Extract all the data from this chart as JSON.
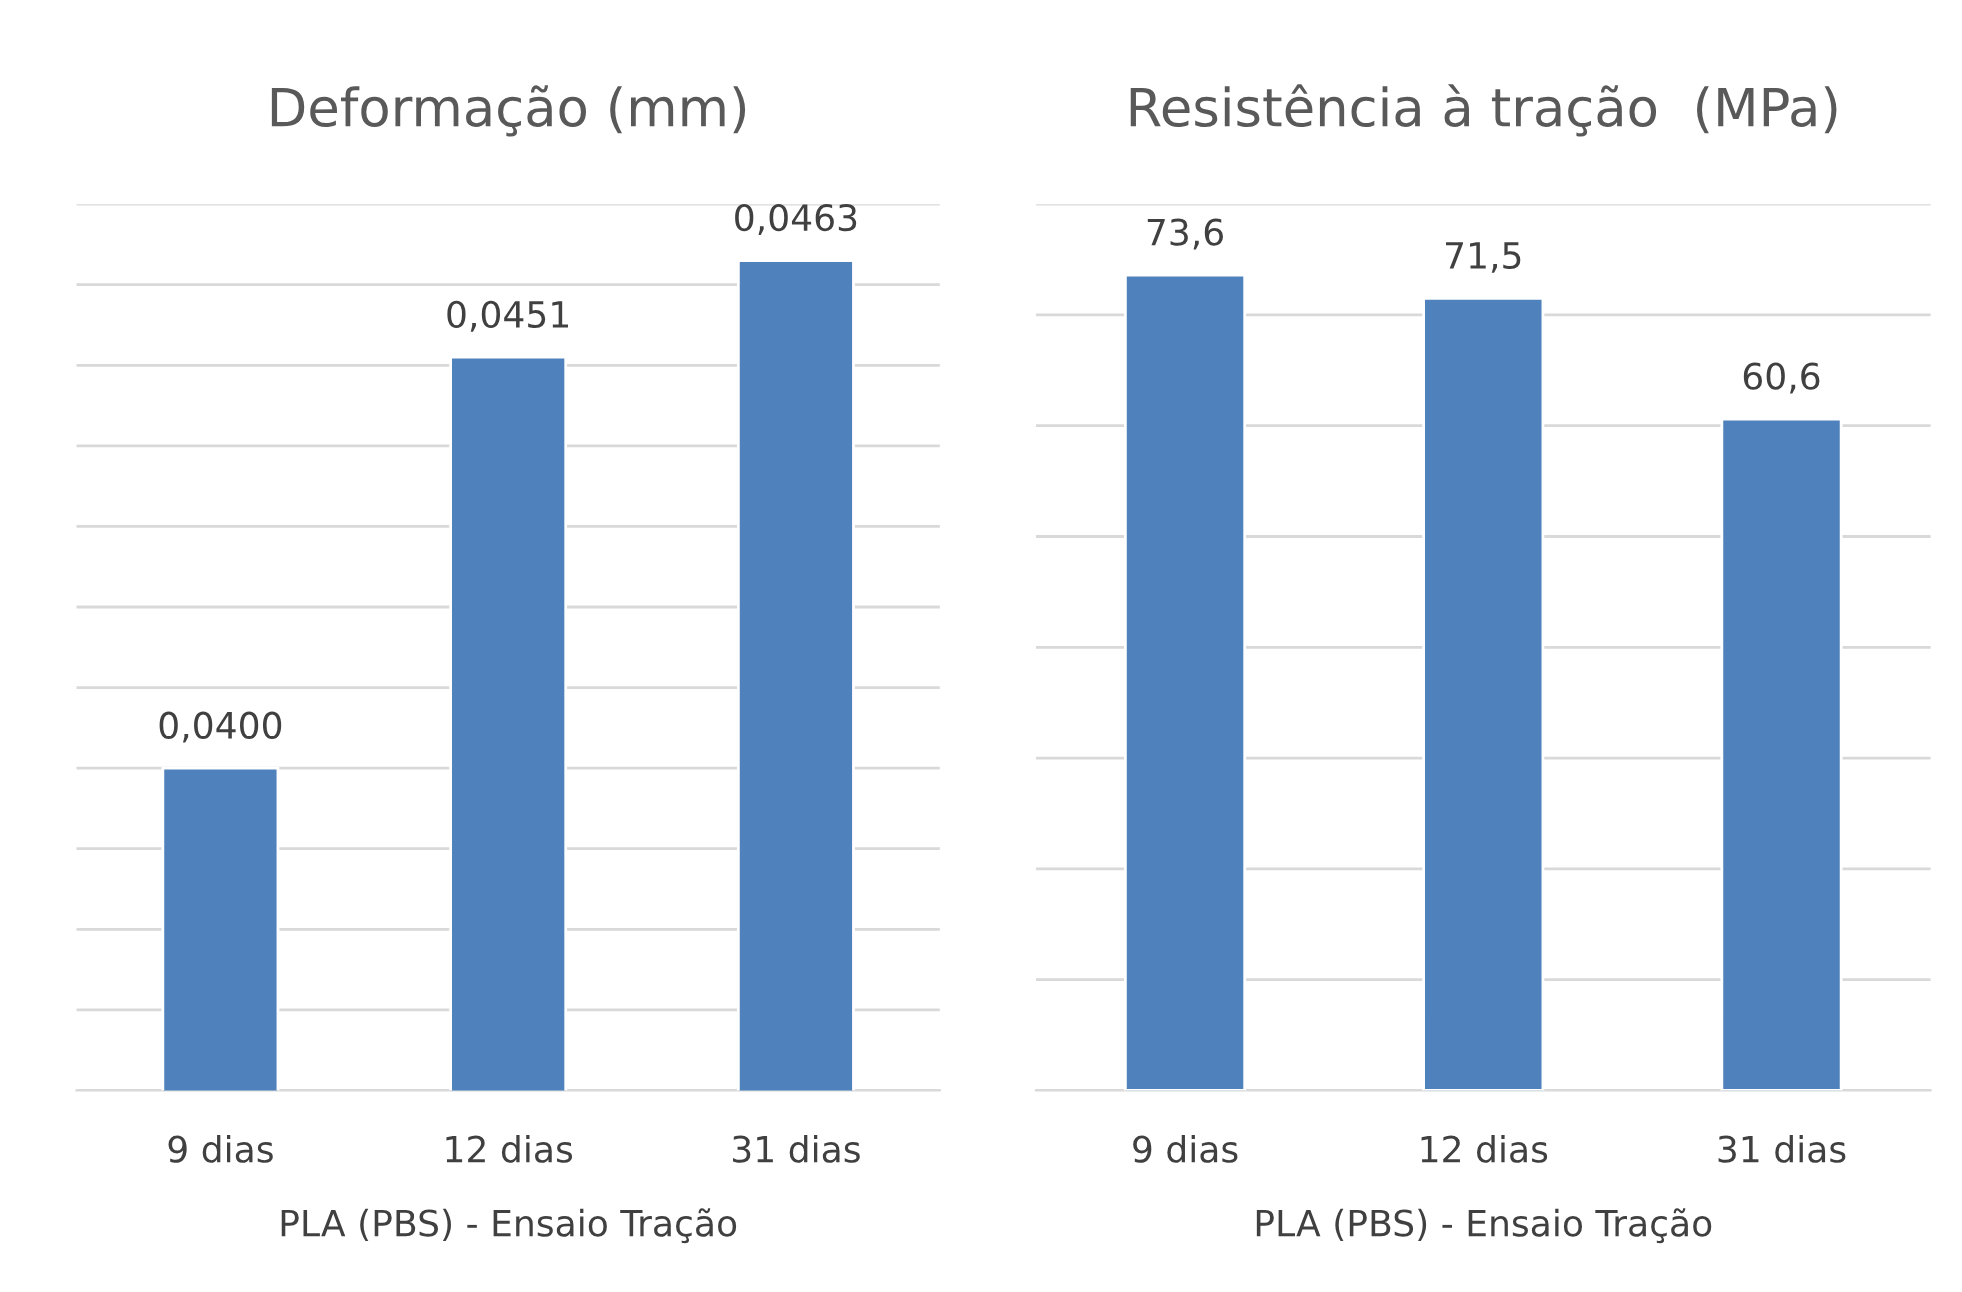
{
  "chart_data": [
    {
      "type": "bar",
      "title": "Deformação (mm)",
      "xlabel": "PLA (PBS) - Ensaio Tração",
      "categories": [
        "9 dias",
        "12 dias",
        "31 dias"
      ],
      "values": [
        0.04,
        0.0451,
        0.0463
      ],
      "value_labels": [
        "0,0400",
        "0,0451",
        "0,0463"
      ],
      "color": "#4f81bd",
      "ylim": [
        0.036,
        0.047
      ],
      "yticks": [
        {
          "value": 0.036,
          "label": null
        },
        {
          "value": 0.037,
          "label": null
        },
        {
          "value": 0.038,
          "label": null
        },
        {
          "value": 0.039,
          "label": null
        },
        {
          "value": 0.04,
          "label": null
        },
        {
          "value": 0.041,
          "label": null
        },
        {
          "value": 0.042,
          "label": null
        },
        {
          "value": 0.043,
          "label": null
        },
        {
          "value": 0.044,
          "label": null
        },
        {
          "value": 0.045,
          "label": null
        },
        {
          "value": 0.046,
          "label": null
        },
        {
          "value": 0.047,
          "label": null
        }
      ],
      "grid": "y",
      "legend": false
    },
    {
      "type": "bar",
      "title": "Resistência à tração  (MPa)",
      "xlabel": "PLA (PBS) - Ensaio Tração",
      "categories": [
        "9 dias",
        "12 dias",
        "31 dias"
      ],
      "values": [
        73.6,
        71.5,
        60.6
      ],
      "value_labels": [
        "73,6",
        "71,5",
        "60,6"
      ],
      "color": "#4f81bd",
      "ylim": [
        0,
        80
      ],
      "yticks": [
        {
          "value": 0,
          "label": null
        },
        {
          "value": 10,
          "label": null
        },
        {
          "value": 20,
          "label": null
        },
        {
          "value": 30,
          "label": null
        },
        {
          "value": 40,
          "label": null
        },
        {
          "value": 50,
          "label": null
        },
        {
          "value": 60,
          "label": null
        },
        {
          "value": 70,
          "label": null
        },
        {
          "value": 80,
          "label": null
        }
      ],
      "grid": "y",
      "legend": false
    }
  ]
}
